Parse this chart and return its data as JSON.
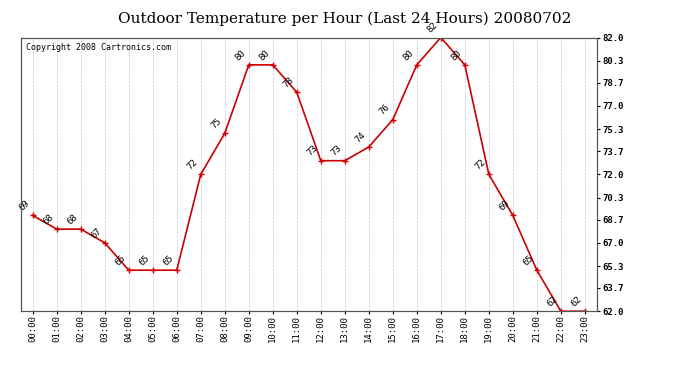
{
  "title": "Outdoor Temperature per Hour (Last 24 Hours) 20080702",
  "copyright": "Copyright 2008 Cartronics.com",
  "hours": [
    "00:00",
    "01:00",
    "02:00",
    "03:00",
    "04:00",
    "05:00",
    "06:00",
    "07:00",
    "08:00",
    "09:00",
    "10:00",
    "11:00",
    "12:00",
    "13:00",
    "14:00",
    "15:00",
    "16:00",
    "17:00",
    "18:00",
    "19:00",
    "20:00",
    "21:00",
    "22:00",
    "23:00"
  ],
  "temps": [
    69,
    68,
    68,
    67,
    65,
    65,
    65,
    72,
    75,
    80,
    80,
    78,
    73,
    73,
    74,
    76,
    80,
    82,
    80,
    72,
    69,
    65,
    62,
    62
  ],
  "line_color": "#cc0000",
  "marker_color": "#cc0000",
  "label_color": "#000000",
  "background_color": "#ffffff",
  "grid_color": "#bbbbbb",
  "ylim": [
    62.0,
    82.0
  ],
  "yticks": [
    62.0,
    63.7,
    65.3,
    67.0,
    68.7,
    70.3,
    72.0,
    73.7,
    75.3,
    77.0,
    78.7,
    80.3,
    82.0
  ],
  "ytick_labels": [
    "62.0",
    "63.7",
    "65.3",
    "67.0",
    "68.7",
    "70.3",
    "72.0",
    "73.7",
    "75.3",
    "77.0",
    "78.7",
    "80.3",
    "82.0"
  ],
  "title_fontsize": 11,
  "annotation_fontsize": 6.5,
  "tick_fontsize": 6.5,
  "copyright_fontsize": 6
}
